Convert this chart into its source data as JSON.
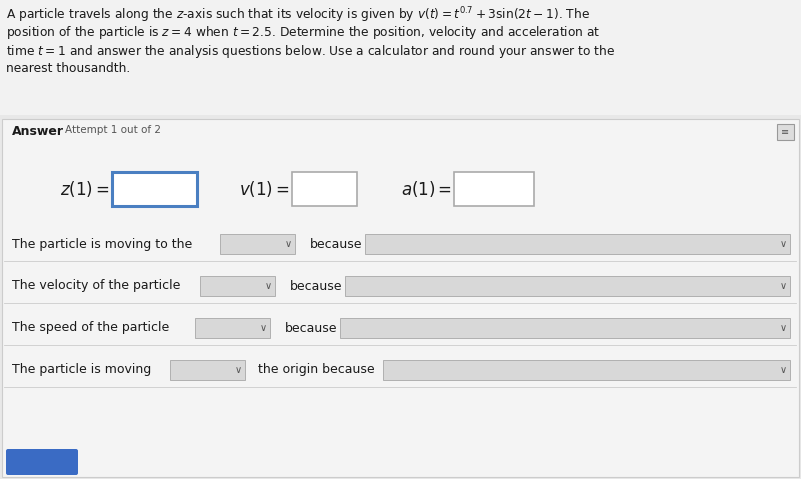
{
  "bg_top": "#e8e8e8",
  "bg_answer": "#ebebeb",
  "white": "#ffffff",
  "box_border_blue": "#4a7fc1",
  "box_border_gray": "#aaaaaa",
  "dropdown_bg": "#d8d8d8",
  "dropdown_border": "#aaaaaa",
  "answer_area_border": "#cccccc",
  "button_color": "#3a6bc4",
  "text_color": "#1a1a1a",
  "gray_text": "#555555",
  "answer_label": "Answer",
  "attempt_label": "Attempt 1 out of 2",
  "row1_label": "The particle is moving to the",
  "row1_mid": "because",
  "row2_label": "The velocity of the particle",
  "row2_mid": "because",
  "row3_label": "The speed of the particle",
  "row3_mid": "because",
  "row4_label": "The particle is moving",
  "row4_mid": "the origin because"
}
